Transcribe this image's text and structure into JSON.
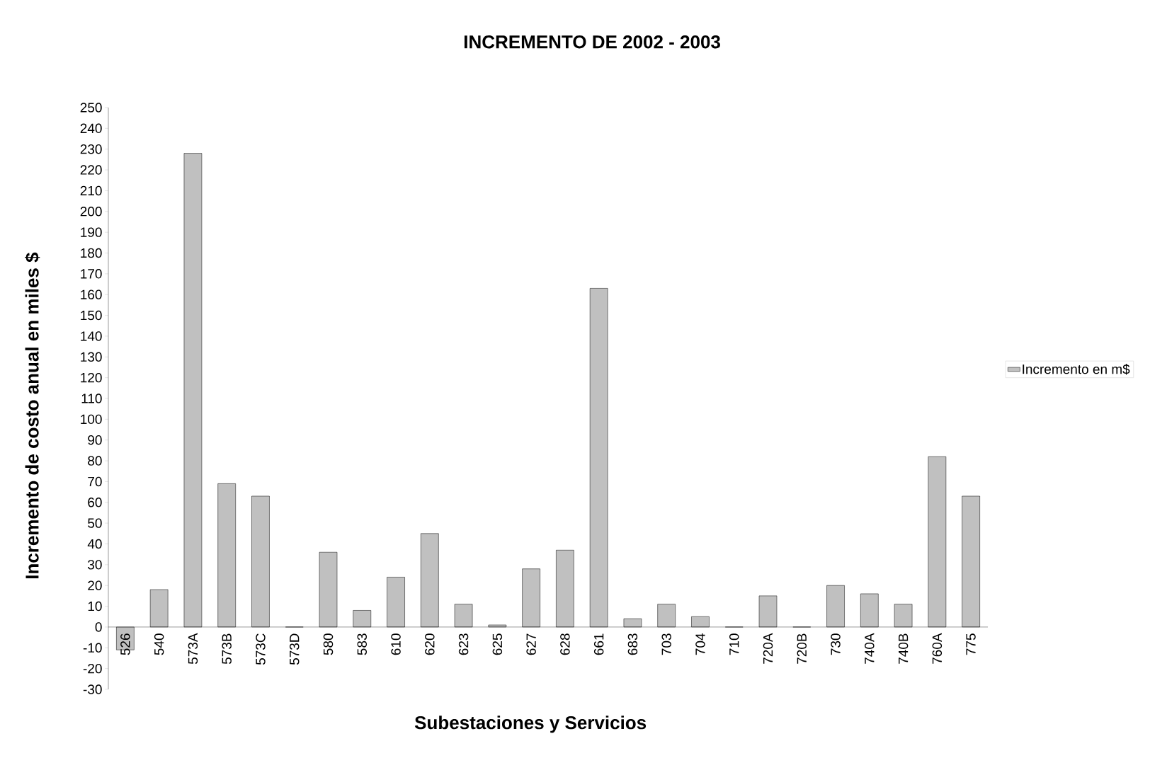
{
  "chart_data": {
    "type": "bar",
    "title": "INCREMENTO DE  2002 - 2003",
    "xlabel": "Subestaciones y Servicios",
    "ylabel": "Incremento de costo anual en miles $",
    "categories": [
      "526",
      "540",
      "573A",
      "573B",
      "573C",
      "573D",
      "580",
      "583",
      "610",
      "620",
      "623",
      "625",
      "627",
      "628",
      "661",
      "683",
      "703",
      "704",
      "710",
      "720A",
      "720B",
      "730",
      "740A",
      "740B",
      "760A",
      "775"
    ],
    "series": [
      {
        "name": "Incremento en m$",
        "color": "#c0c0c0",
        "values": [
          -11,
          18,
          228,
          69,
          63,
          0,
          36,
          8,
          24,
          45,
          11,
          1,
          28,
          37,
          163,
          4,
          11,
          5,
          0,
          15,
          0,
          20,
          16,
          11,
          82,
          63
        ]
      }
    ],
    "ylim": [
      -30,
      250
    ],
    "yticks": [
      -30,
      -20,
      -10,
      0,
      10,
      20,
      30,
      40,
      50,
      60,
      70,
      80,
      90,
      100,
      110,
      120,
      130,
      140,
      150,
      160,
      170,
      180,
      190,
      200,
      210,
      220,
      230,
      240,
      250
    ],
    "legend": "right",
    "grid": false
  }
}
